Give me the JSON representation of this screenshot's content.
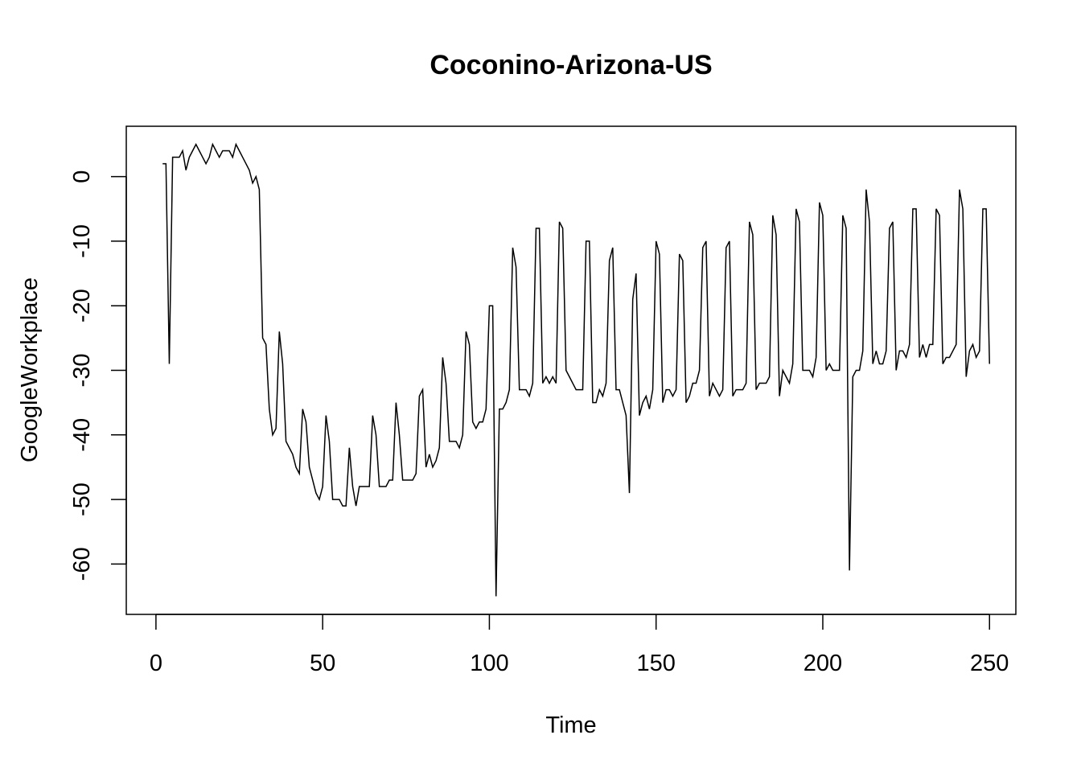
{
  "chart_data": {
    "type": "line",
    "title": "Coconino-Arizona-US",
    "xlabel": "Time",
    "ylabel": "GoogleWorkplace",
    "xlim": [
      -8.9,
      257.9
    ],
    "ylim": [
      -67.8,
      7.8
    ],
    "xticks": [
      0,
      50,
      100,
      150,
      200,
      250
    ],
    "yticks": [
      0,
      -10,
      -20,
      -30,
      -40,
      -50,
      -60
    ],
    "xtick_labels": [
      "0",
      "50",
      "100",
      "150",
      "200",
      "250"
    ],
    "ytick_labels": [
      "0",
      "-10",
      "-20",
      "-30",
      "-40",
      "-50",
      "-60"
    ],
    "grid": false,
    "series": [
      {
        "x_start": 2,
        "values": [
          2,
          2,
          -29,
          3,
          3,
          3,
          4,
          1,
          3,
          4,
          5,
          4,
          3,
          2,
          3,
          5,
          4,
          3,
          4,
          4,
          4,
          3,
          5,
          4,
          3,
          2,
          1,
          -1,
          0,
          -2,
          -25,
          -26,
          -36,
          -40,
          -39,
          -24,
          -29,
          -41,
          -42,
          -43,
          -45,
          -46,
          -36,
          -38,
          -45,
          -47,
          -49,
          -50,
          -48,
          -37,
          -41,
          -50,
          -50,
          -50,
          -51,
          -51,
          -42,
          -48,
          -51,
          -48,
          -48,
          -48,
          -48,
          -37,
          -40,
          -48,
          -48,
          -48,
          -47,
          -47,
          -35,
          -40,
          -47,
          -47,
          -47,
          -47,
          -46,
          -34,
          -33,
          -45,
          -43,
          -45,
          -44,
          -42,
          -28,
          -32,
          -41,
          -41,
          -41,
          -42,
          -40,
          -24,
          -26,
          -38,
          -39,
          -38,
          -38,
          -36,
          -20,
          -20,
          -65,
          -36,
          -36,
          -35,
          -33,
          -11,
          -14,
          -33,
          -33,
          -33,
          -34,
          -32,
          -8,
          -8,
          -32,
          -31,
          -32,
          -31,
          -32,
          -7,
          -8,
          -30,
          -31,
          -32,
          -33,
          -33,
          -33,
          -10,
          -10,
          -35,
          -35,
          -33,
          -34,
          -32,
          -13,
          -11,
          -33,
          -33,
          -35,
          -37,
          -49,
          -19,
          -15,
          -37,
          -35,
          -34,
          -36,
          -33,
          -10,
          -12,
          -35,
          -33,
          -33,
          -34,
          -33,
          -12,
          -13,
          -35,
          -34,
          -32,
          -32,
          -30,
          -11,
          -10,
          -34,
          -32,
          -33,
          -34,
          -33,
          -11,
          -10,
          -34,
          -33,
          -33,
          -33,
          -32,
          -7,
          -9,
          -33,
          -32,
          -32,
          -32,
          -31,
          -6,
          -9,
          -34,
          -30,
          -31,
          -32,
          -29,
          -5,
          -7,
          -30,
          -30,
          -30,
          -31,
          -28,
          -4,
          -6,
          -30,
          -29,
          -30,
          -30,
          -30,
          -6,
          -8,
          -61,
          -31,
          -30,
          -30,
          -27,
          -2,
          -7,
          -29,
          -27,
          -29,
          -29,
          -27,
          -8,
          -7,
          -30,
          -27,
          -27,
          -28,
          -26,
          -5,
          -5,
          -28,
          -26,
          -28,
          -26,
          -26,
          -5,
          -6,
          -29,
          -28,
          -28,
          -27,
          -26,
          -2,
          -5,
          -31,
          -27,
          -26,
          -28,
          -27,
          -5,
          -5,
          -29
        ]
      }
    ]
  }
}
